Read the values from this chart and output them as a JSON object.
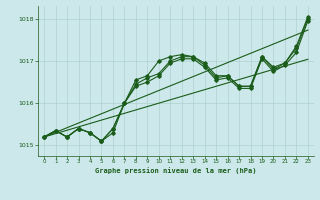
{
  "title": "Graphe pression niveau de la mer (hPa)",
  "bg_color": "#cce8ea",
  "line_color": "#1a5c1a",
  "grid_color": "#b0d0d0",
  "x_ticks": [
    0,
    1,
    2,
    3,
    4,
    5,
    6,
    7,
    8,
    9,
    10,
    11,
    12,
    13,
    14,
    15,
    16,
    17,
    18,
    19,
    20,
    21,
    22,
    23
  ],
  "ylim": [
    1014.75,
    1018.3
  ],
  "yticks": [
    1015,
    1016,
    1017,
    1018
  ],
  "line1": [
    1015.2,
    1015.35,
    1015.2,
    1015.4,
    1015.3,
    1015.1,
    1015.4,
    1016.0,
    1016.55,
    1016.65,
    1017.0,
    1017.1,
    1017.15,
    1017.1,
    1016.95,
    1016.65,
    1016.65,
    1016.4,
    1016.4,
    1017.1,
    1016.85,
    1016.95,
    1017.35,
    1018.05
  ],
  "line2": [
    1015.2,
    1015.35,
    1015.2,
    1015.4,
    1015.3,
    1015.1,
    1015.4,
    1016.0,
    1016.45,
    1016.6,
    1016.7,
    1017.0,
    1017.1,
    1017.1,
    1016.9,
    1016.6,
    1016.65,
    1016.4,
    1016.4,
    1017.1,
    1016.8,
    1016.95,
    1017.3,
    1018.0
  ],
  "line3": [
    1015.2,
    1015.35,
    1015.2,
    1015.4,
    1015.3,
    1015.1,
    1015.3,
    1016.0,
    1016.4,
    1016.5,
    1016.65,
    1016.95,
    1017.05,
    1017.05,
    1016.85,
    1016.55,
    1016.6,
    1016.35,
    1016.35,
    1017.05,
    1016.75,
    1016.9,
    1017.2,
    1017.95
  ],
  "line4_straight": [
    1015.2,
    1015.28,
    1015.36,
    1015.44,
    1015.52,
    1015.6,
    1015.68,
    1015.76,
    1015.84,
    1015.92,
    1016.0,
    1016.08,
    1016.16,
    1016.24,
    1016.32,
    1016.4,
    1016.48,
    1016.56,
    1016.64,
    1016.72,
    1016.8,
    1016.88,
    1016.96,
    1017.04
  ],
  "line5_straight": [
    1015.2,
    1015.31,
    1015.42,
    1015.53,
    1015.64,
    1015.75,
    1015.86,
    1015.97,
    1016.08,
    1016.19,
    1016.3,
    1016.41,
    1016.52,
    1016.63,
    1016.74,
    1016.85,
    1016.96,
    1017.07,
    1017.18,
    1017.29,
    1017.4,
    1017.51,
    1017.62,
    1017.73
  ]
}
